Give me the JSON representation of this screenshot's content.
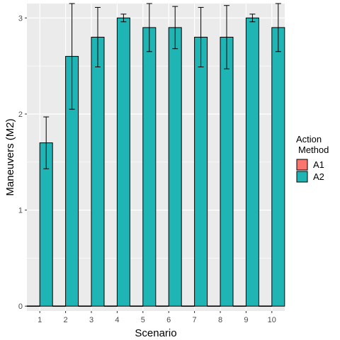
{
  "chart_data": {
    "type": "bar",
    "xlabel": "Scenario",
    "ylabel": "Maneuvers (M2)",
    "categories": [
      "1",
      "2",
      "3",
      "4",
      "5",
      "6",
      "7",
      "8",
      "9",
      "10"
    ],
    "ylim": [
      -0.05,
      3.15
    ],
    "yticks": [
      "0",
      "1",
      "2",
      "3"
    ],
    "legend": {
      "title_line1": "Action",
      "title_line2": "Method",
      "placement": "right"
    },
    "series": [
      {
        "name": "A1",
        "color": "#F8766D",
        "values": [
          0,
          0,
          0,
          0,
          0,
          0,
          0,
          0,
          0,
          0
        ],
        "error_low": [
          0,
          0,
          0,
          0,
          0,
          0,
          0,
          0,
          0,
          0
        ],
        "error_high": [
          0,
          0,
          0,
          0,
          0,
          0,
          0,
          0,
          0,
          0
        ]
      },
      {
        "name": "A2",
        "color": "#1FB5B5",
        "values": [
          1.7,
          2.6,
          2.8,
          3.0,
          2.9,
          2.9,
          2.8,
          2.8,
          3.0,
          2.9
        ],
        "error_low": [
          1.43,
          2.05,
          2.49,
          2.96,
          2.65,
          2.68,
          2.49,
          2.47,
          2.96,
          2.65
        ],
        "error_high": [
          1.97,
          3.15,
          3.11,
          3.04,
          3.15,
          3.12,
          3.11,
          3.13,
          3.04,
          3.15
        ]
      }
    ],
    "grid": true,
    "panel_background": "#EBEBEB",
    "grid_color": "#FFFFFF"
  }
}
